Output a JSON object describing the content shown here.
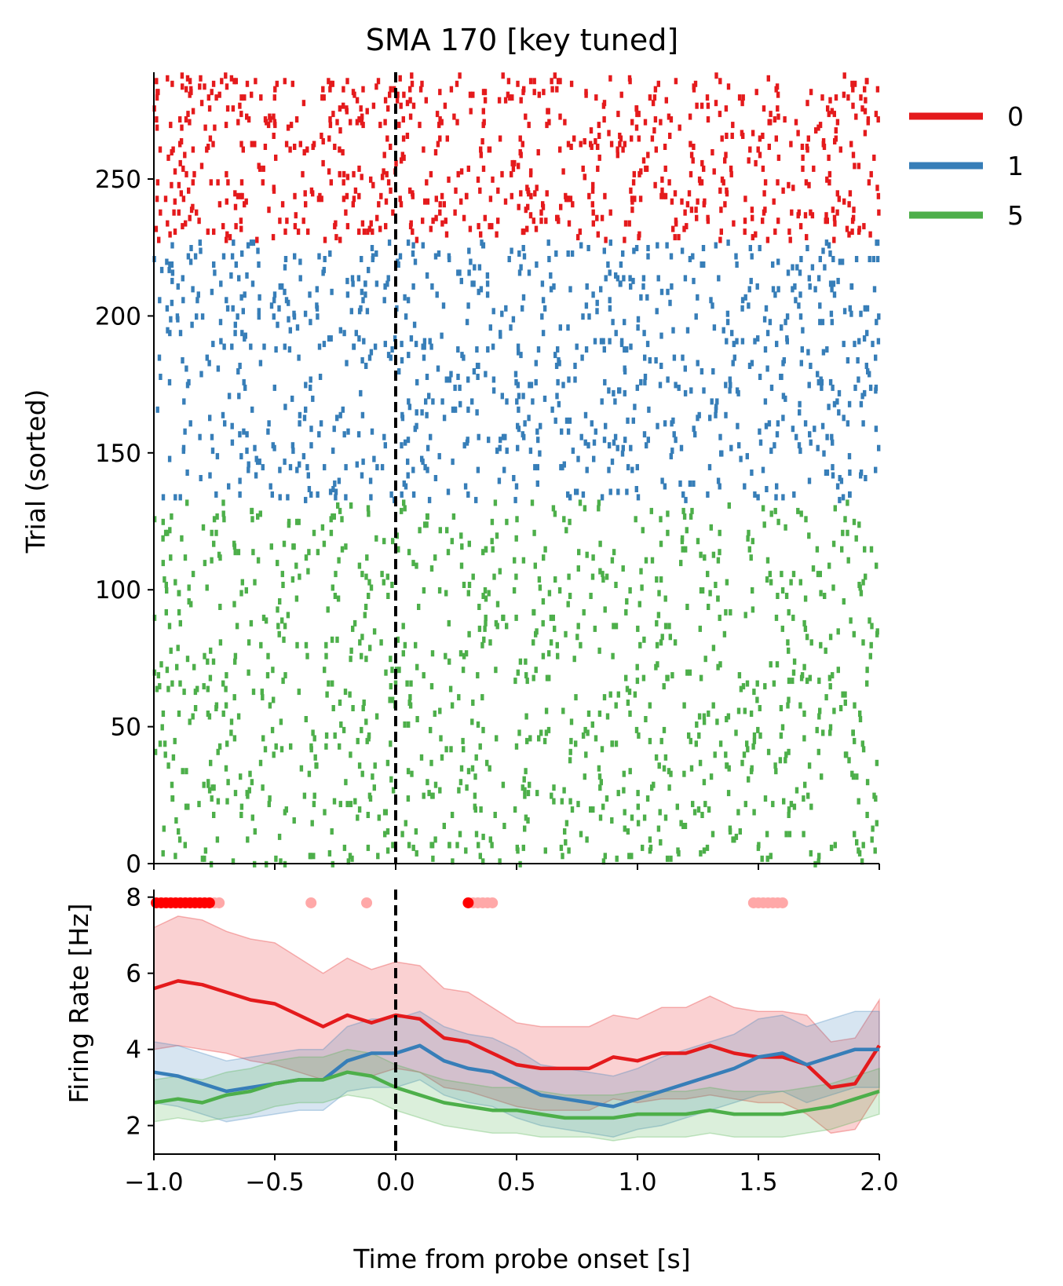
{
  "title": "SMA 170 [key tuned]",
  "colors": {
    "0": "#e41a1c",
    "1": "#377eb8",
    "5": "#4daf4a",
    "sig_strong": "#ff0000",
    "sig_weak": "#ffa8a8",
    "axis": "#000000"
  },
  "legend": [
    {
      "label": "0",
      "color": "#e41a1c"
    },
    {
      "label": "1",
      "color": "#377eb8"
    },
    {
      "label": "5",
      "color": "#4daf4a"
    }
  ],
  "chart_data": [
    {
      "type": "scatter",
      "subtype": "raster",
      "ylabel": "Trial (sorted)",
      "xlim": [
        -1.0,
        2.0
      ],
      "ylim": [
        0,
        289
      ],
      "yticks": [
        "0",
        "50",
        "100",
        "150",
        "200",
        "250"
      ],
      "event_line_x": 0.0,
      "groups": [
        {
          "name": "5",
          "trial_range": [
            0,
            133
          ],
          "mean_rate_hz": 2.7
        },
        {
          "name": "1",
          "trial_range": [
            133,
            228
          ],
          "mean_rate_hz": 3.4
        },
        {
          "name": "0",
          "trial_range": [
            228,
            289
          ],
          "mean_rate_hz": 4.4
        }
      ]
    },
    {
      "type": "line",
      "xlabel": "Time from probe onset [s]",
      "ylabel": "Firing Rate [Hz]",
      "xlim": [
        -1.0,
        2.0
      ],
      "ylim": [
        1.25,
        8.2
      ],
      "xticks": [
        "−1.0",
        "−0.5",
        "0.0",
        "0.5",
        "1.0",
        "1.5",
        "2.0"
      ],
      "yticks": [
        "2",
        "4",
        "6",
        "8"
      ],
      "event_line_x": 0.0,
      "x": [
        -1.0,
        -0.9,
        -0.8,
        -0.7,
        -0.6,
        -0.5,
        -0.4,
        -0.3,
        -0.2,
        -0.1,
        0.0,
        0.1,
        0.2,
        0.3,
        0.4,
        0.5,
        0.6,
        0.7,
        0.8,
        0.9,
        1.0,
        1.1,
        1.2,
        1.3,
        1.4,
        1.5,
        1.6,
        1.7,
        1.8,
        1.9,
        2.0
      ],
      "series": [
        {
          "name": "0",
          "values": [
            5.6,
            5.8,
            5.7,
            5.5,
            5.3,
            5.2,
            4.9,
            4.6,
            4.9,
            4.7,
            4.9,
            4.8,
            4.3,
            4.2,
            3.9,
            3.6,
            3.5,
            3.5,
            3.5,
            3.8,
            3.7,
            3.9,
            3.9,
            4.1,
            3.9,
            3.8,
            3.8,
            3.6,
            3.0,
            3.1,
            4.1
          ],
          "lower": [
            4.0,
            4.1,
            4.0,
            3.9,
            3.7,
            3.6,
            3.4,
            3.2,
            3.4,
            3.3,
            3.5,
            3.4,
            3.0,
            2.9,
            2.7,
            2.5,
            2.4,
            2.4,
            2.4,
            2.7,
            2.6,
            2.7,
            2.7,
            2.8,
            2.7,
            2.6,
            2.6,
            2.3,
            1.8,
            1.9,
            2.9
          ],
          "upper": [
            7.2,
            7.5,
            7.4,
            7.1,
            6.9,
            6.8,
            6.4,
            6.0,
            6.4,
            6.1,
            6.3,
            6.2,
            5.6,
            5.5,
            5.1,
            4.7,
            4.6,
            4.6,
            4.6,
            4.9,
            4.8,
            5.1,
            5.1,
            5.4,
            5.1,
            5.0,
            5.0,
            4.9,
            4.2,
            4.3,
            5.3
          ]
        },
        {
          "name": "1",
          "values": [
            3.4,
            3.3,
            3.1,
            2.9,
            3.0,
            3.1,
            3.2,
            3.2,
            3.7,
            3.9,
            3.9,
            4.1,
            3.7,
            3.5,
            3.4,
            3.1,
            2.8,
            2.7,
            2.6,
            2.5,
            2.7,
            2.9,
            3.1,
            3.3,
            3.5,
            3.8,
            3.9,
            3.6,
            3.8,
            4.0,
            4.0
          ],
          "lower": [
            2.6,
            2.5,
            2.3,
            2.1,
            2.2,
            2.3,
            2.4,
            2.4,
            2.9,
            3.0,
            3.0,
            3.2,
            2.8,
            2.6,
            2.5,
            2.2,
            2.0,
            1.9,
            1.8,
            1.7,
            1.9,
            2.0,
            2.2,
            2.4,
            2.6,
            2.8,
            2.9,
            2.6,
            2.8,
            3.0,
            3.0
          ],
          "upper": [
            4.2,
            4.1,
            3.9,
            3.7,
            3.8,
            3.9,
            4.0,
            4.0,
            4.6,
            4.8,
            4.8,
            5.0,
            4.6,
            4.4,
            4.3,
            4.0,
            3.6,
            3.5,
            3.4,
            3.3,
            3.5,
            3.8,
            4.0,
            4.2,
            4.4,
            4.8,
            4.9,
            4.6,
            4.8,
            5.0,
            5.0
          ]
        },
        {
          "name": "5",
          "values": [
            2.6,
            2.7,
            2.6,
            2.8,
            2.9,
            3.1,
            3.2,
            3.2,
            3.4,
            3.3,
            3.0,
            2.8,
            2.6,
            2.5,
            2.4,
            2.4,
            2.3,
            2.2,
            2.2,
            2.2,
            2.3,
            2.3,
            2.3,
            2.4,
            2.3,
            2.3,
            2.3,
            2.4,
            2.5,
            2.7,
            2.9
          ],
          "lower": [
            2.1,
            2.2,
            2.1,
            2.2,
            2.3,
            2.5,
            2.6,
            2.6,
            2.8,
            2.7,
            2.4,
            2.2,
            2.0,
            1.9,
            1.8,
            1.8,
            1.7,
            1.7,
            1.7,
            1.6,
            1.7,
            1.7,
            1.7,
            1.8,
            1.7,
            1.7,
            1.7,
            1.8,
            1.9,
            2.1,
            2.3
          ],
          "upper": [
            3.2,
            3.3,
            3.2,
            3.4,
            3.5,
            3.7,
            3.8,
            3.8,
            4.0,
            3.9,
            3.6,
            3.4,
            3.2,
            3.1,
            3.0,
            3.0,
            2.9,
            2.8,
            2.8,
            2.8,
            2.9,
            2.9,
            2.9,
            3.0,
            2.9,
            2.9,
            2.9,
            3.0,
            3.1,
            3.3,
            3.5
          ]
        }
      ],
      "significance_markers": {
        "y": 7.85,
        "strong_x": [
          -0.99,
          -0.97,
          -0.95,
          -0.93,
          -0.91,
          -0.89,
          -0.87,
          -0.85,
          -0.83,
          -0.81,
          -0.79,
          -0.77,
          0.3
        ],
        "weak_x": [
          -0.75,
          -0.73,
          -0.35,
          -0.12,
          0.32,
          0.34,
          0.36,
          0.38,
          0.4,
          1.48,
          1.5,
          1.52,
          1.54,
          1.56,
          1.58,
          1.6
        ]
      }
    }
  ]
}
